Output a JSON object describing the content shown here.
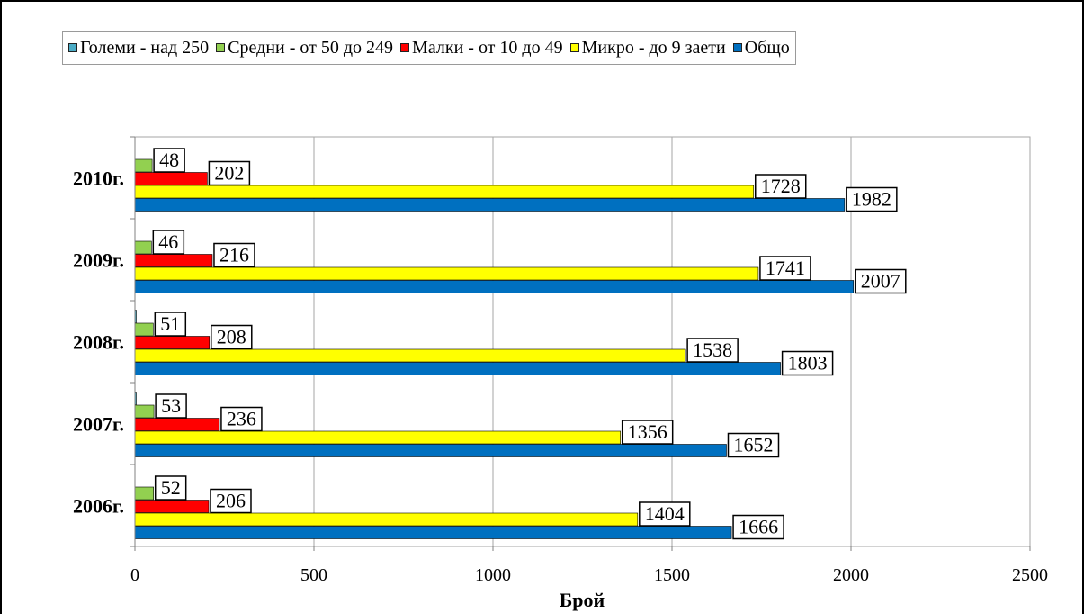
{
  "chart_data": {
    "type": "bar",
    "orientation": "horizontal",
    "categories": [
      "2010г.",
      "2009г.",
      "2008г.",
      "2007г.",
      "2006г."
    ],
    "series": [
      {
        "name": "Големи - над 250",
        "color": "#4bacc6",
        "values": [
          0,
          0,
          1,
          1,
          0
        ]
      },
      {
        "name": "Средни - от 50 до 249",
        "color": "#92d050",
        "values": [
          48,
          46,
          51,
          53,
          52
        ]
      },
      {
        "name": "Малки - от 10 до 49",
        "color": "#ff0000",
        "values": [
          202,
          216,
          208,
          236,
          206
        ]
      },
      {
        "name": "Микро - до 9 заети",
        "color": "#ffff00",
        "values": [
          1728,
          1741,
          1538,
          1356,
          1404
        ]
      },
      {
        "name": "Общо",
        "color": "#0070c0",
        "values": [
          1982,
          2007,
          1803,
          1652,
          1666
        ]
      }
    ],
    "data_labels_for_series": [
      "Средни - от 50 до 249",
      "Малки - от 10 до 49",
      "Микро - до 9 заети",
      "Общо"
    ],
    "xlabel": "Брой",
    "xlim": [
      0,
      2500
    ],
    "xticks": [
      0,
      500,
      1000,
      1500,
      2000,
      2500
    ],
    "grid": true,
    "legend_position": "top"
  }
}
